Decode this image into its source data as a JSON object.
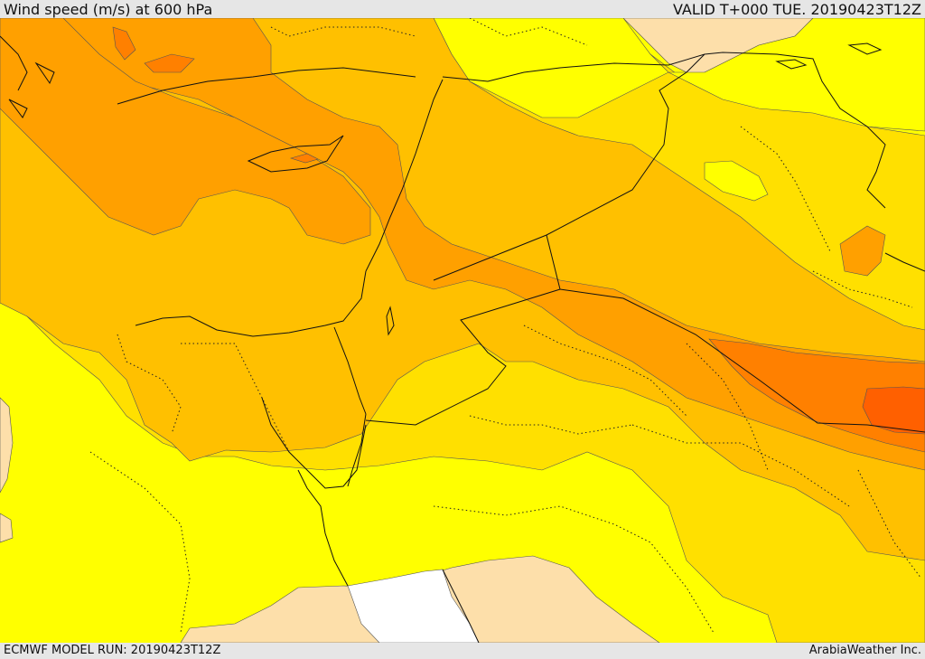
{
  "header": {
    "title": "Wind speed (m/s) at 600 hPa",
    "valid": "VALID T+000 TUE. 20190423T12Z"
  },
  "footer": {
    "model_run": "ECMWF MODEL RUN: 20190423T12Z",
    "brand": "ArabiaWeather Inc."
  },
  "palette": {
    "white": "#ffffff",
    "tan": "#fddfaa",
    "yellow": "#ffff00",
    "gold": "#ffe000",
    "amber": "#ffc000",
    "orange": "#ffa000",
    "deep_orange": "#ff8000",
    "red_orange": "#ff6000"
  }
}
